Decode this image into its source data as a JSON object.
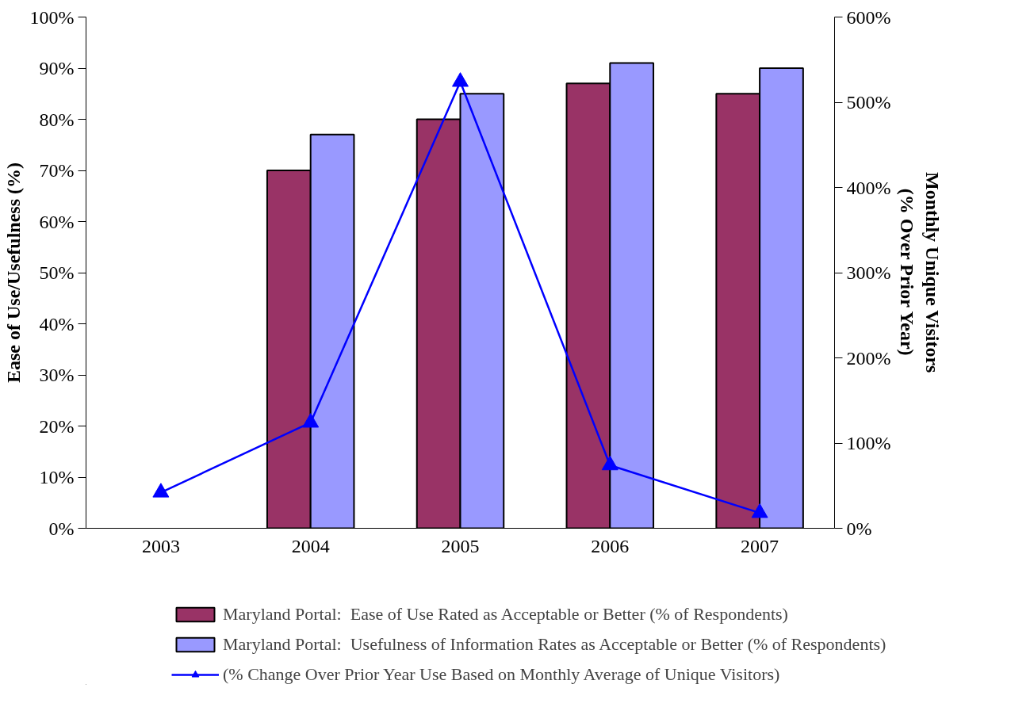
{
  "chart_data": {
    "type": "bar",
    "ylabel": "Ease of Use/Usefulness (%)",
    "y2label": "Monthly Unique Visitors\n(% Over Prior Year)",
    "categories": [
      "2003",
      "2004",
      "2005",
      "2006",
      "2007"
    ],
    "series": [
      {
        "name": "Maryland Portal:  Ease of Use Rated as Acceptable or Better (% of Respondents)",
        "color": "#993366",
        "values": [
          null,
          70,
          80,
          87,
          85
        ]
      },
      {
        "name": "Maryland Portal:  Usefulness of Information Rates as Acceptable or Better (% of Respondents)",
        "color": "#9999ff",
        "values": [
          null,
          77,
          85,
          91,
          90
        ]
      },
      {
        "name": "(% Change Over Prior Year Use Based on Monthly Average of Unique Visitors)",
        "type": "line",
        "axis": "y2",
        "color": "#0000ff",
        "marker": "triangle",
        "values": [
          42,
          124,
          524,
          74,
          18
        ]
      }
    ],
    "ylim": [
      0,
      100
    ],
    "yticks": [
      {
        "value": 0,
        "label": "0%"
      },
      {
        "value": 10,
        "label": "10%"
      },
      {
        "value": 20,
        "label": "20%"
      },
      {
        "value": 30,
        "label": "30%"
      },
      {
        "value": 40,
        "label": "40%"
      },
      {
        "value": 50,
        "label": "50%"
      },
      {
        "value": 60,
        "label": "60%"
      },
      {
        "value": 70,
        "label": "70%"
      },
      {
        "value": 80,
        "label": "80%"
      },
      {
        "value": 90,
        "label": "90%"
      },
      {
        "value": 100,
        "label": "100%"
      }
    ],
    "y2lim": [
      0,
      600
    ],
    "y2ticks": [
      {
        "value": 0,
        "label": "0%"
      },
      {
        "value": 100,
        "label": "100%"
      },
      {
        "value": 200,
        "label": "200%"
      },
      {
        "value": 300,
        "label": "300%"
      },
      {
        "value": 400,
        "label": "400%"
      },
      {
        "value": 500,
        "label": "500%"
      },
      {
        "value": 600,
        "label": "600%"
      }
    ],
    "grid": false,
    "legend": "bottom"
  }
}
